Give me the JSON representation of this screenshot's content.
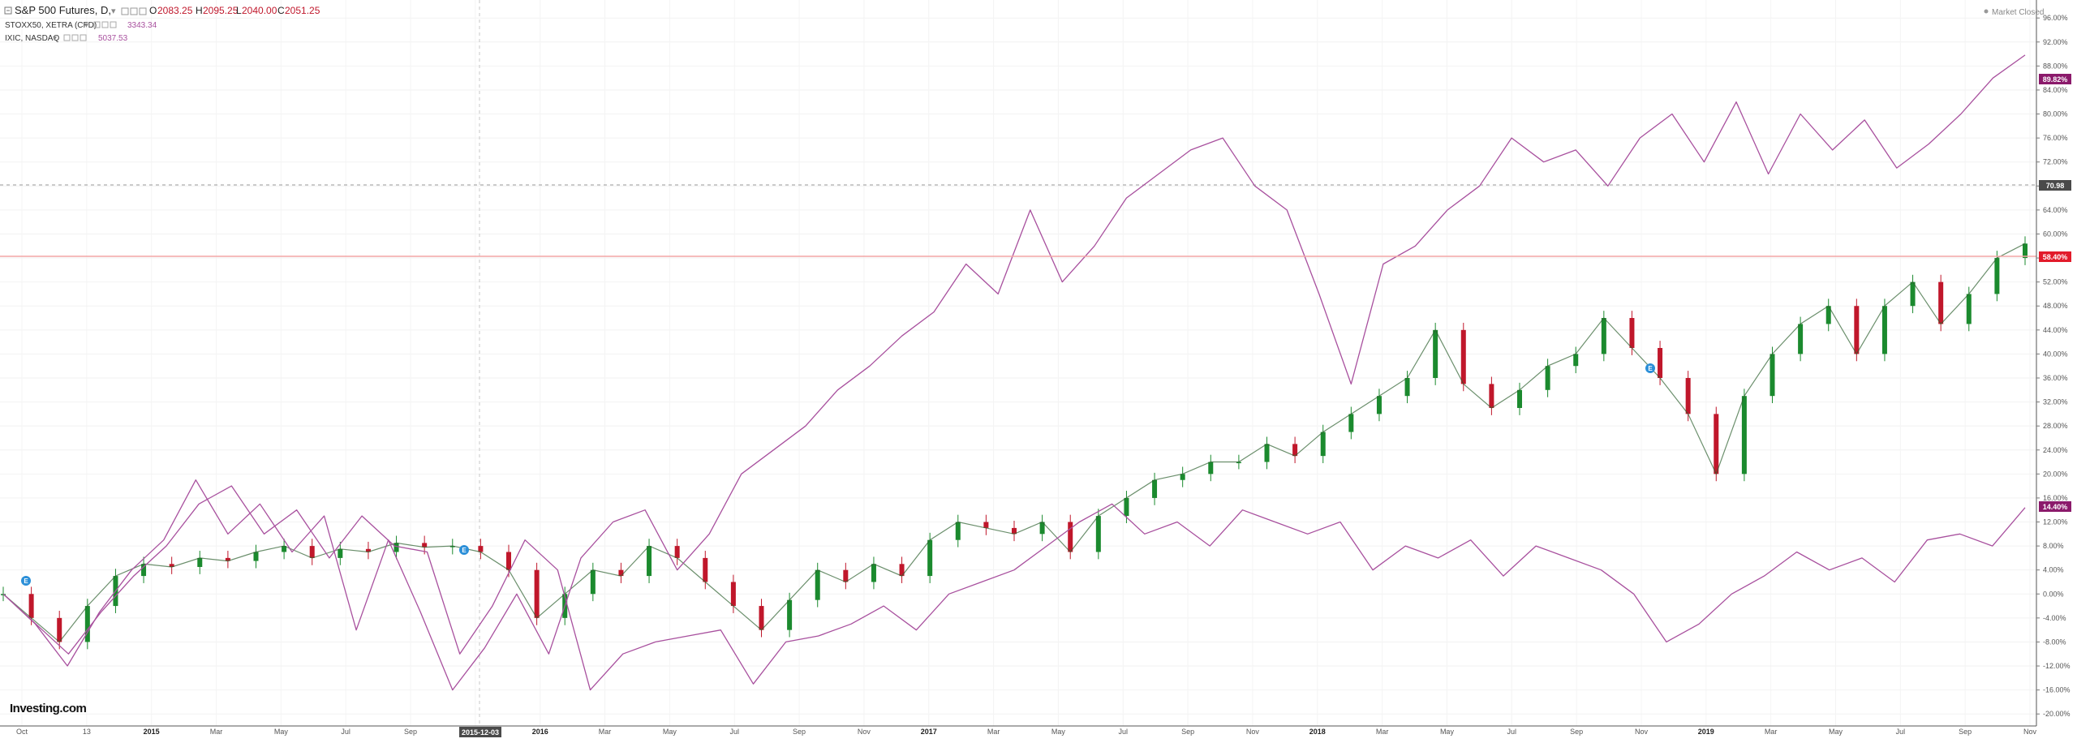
{
  "legend": {
    "main": {
      "name": "S&P 500 Futures, D,",
      "o_label": "O",
      "o": "2083.25",
      "h_label": "H",
      "h": "2095.25",
      "l_label": "L",
      "l": "2040.00",
      "c_label": "C",
      "c": "2051.25"
    },
    "compare": [
      {
        "name": "STOXX50, XETRA (CFD)",
        "value": "3343.34"
      },
      {
        "name": "IXIC, NASDAQ",
        "value": "5037.53"
      }
    ]
  },
  "market_status": "Market Closed",
  "crosshair_date": "2015-12-03",
  "logo": "Investing.com",
  "colors": {
    "up": "#1b8a2e",
    "down": "#c0172b",
    "compare_line": "#a8509e",
    "badge_purple": "#8b1a6b",
    "price_line": "#f3a6a6",
    "badge_red": "#e21b2b",
    "badge_dark": "#4a4a4a"
  },
  "badges": {
    "nasdaq": "89.82%",
    "crosshair": "70.98",
    "spx": "58.40%",
    "stoxx": "14.40%"
  },
  "chart_data": {
    "type": "line",
    "x_ticks": [
      "Oct",
      "13",
      "2015",
      "Mar",
      "May",
      "Jul",
      "Sep",
      "Nov",
      "2016",
      "Mar",
      "May",
      "Jul",
      "Sep",
      "Nov",
      "2017",
      "Mar",
      "May",
      "Jul",
      "Sep",
      "Nov",
      "2018",
      "Mar",
      "May",
      "Jul",
      "Sep",
      "Nov",
      "2019",
      "Mar",
      "May",
      "Jul",
      "Sep",
      "Nov"
    ],
    "y_ticks": [
      "96.00%",
      "92.00%",
      "88.00%",
      "84.00%",
      "80.00%",
      "76.00%",
      "72.00%",
      "68.00%",
      "64.00%",
      "60.00%",
      "56.00%",
      "52.00%",
      "48.00%",
      "44.00%",
      "40.00%",
      "36.00%",
      "32.00%",
      "28.00%",
      "24.00%",
      "20.00%",
      "16.00%",
      "12.00%",
      "8.00%",
      "4.00%",
      "0.00%",
      "-4.00%",
      "-8.00%",
      "-12.00%",
      "-16.00%",
      "-20.00%"
    ],
    "ylim": [
      -22,
      99
    ],
    "xlim": [
      0,
      62
    ],
    "series": [
      {
        "kind": "candles",
        "values": [
          0.0,
          -4.0,
          -8.0,
          -2.0,
          3.0,
          5.0,
          4.5,
          6.0,
          5.5,
          7.0,
          8.0,
          6.0,
          7.5,
          7.0,
          8.5,
          7.8,
          8.0,
          7.0,
          4.0,
          -4.0,
          0.0,
          4.0,
          3.0,
          8.0,
          6.0,
          2.0,
          -2.0,
          -6.0,
          -1.0,
          4.0,
          2.0,
          5.0,
          3.0,
          9.0,
          12.0,
          11.0,
          10.0,
          12.0,
          7.0,
          13.0,
          16.0,
          19.0,
          20.0,
          22.0,
          22.0,
          25.0,
          23.0,
          27.0,
          30.0,
          33.0,
          36.0,
          44.0,
          35.0,
          31.0,
          34.0,
          38.0,
          40.0,
          46.0,
          41.0,
          36.0,
          30.0,
          20.0,
          33.0,
          40.0,
          45.0,
          48.0,
          40.0,
          48.0,
          52.0,
          45.0,
          50.0,
          56.0,
          58.4
        ]
      },
      {
        "kind": "line",
        "values": [
          0.0,
          -5.0,
          -10.0,
          -3.0,
          3.0,
          8.0,
          15.0,
          18.0,
          10.0,
          14.0,
          6.0,
          13.0,
          8.0,
          7.0,
          -10.0,
          -2.0,
          9.0,
          4.0,
          -16.0,
          -10.0,
          -8.0,
          -7.0,
          -6.0,
          -15.0,
          -8.0,
          -7.0,
          -5.0,
          -2.0,
          -6.0,
          0.0,
          2.0,
          4.0,
          8.0,
          12.0,
          15.0,
          10.0,
          12.0,
          8.0,
          14.0,
          12.0,
          10.0,
          12.0,
          4.0,
          8.0,
          6.0,
          9.0,
          3.0,
          8.0,
          6.0,
          4.0,
          0.0,
          -8.0,
          -5.0,
          0.0,
          3.0,
          7.0,
          4.0,
          6.0,
          2.0,
          9.0,
          10.0,
          8.0,
          14.4
        ]
      },
      {
        "kind": "line",
        "values": [
          0.0,
          -5.0,
          -12.0,
          -3.0,
          4.0,
          9.0,
          19.0,
          10.0,
          15.0,
          7.0,
          13.0,
          -6.0,
          9.0,
          -3.0,
          -16.0,
          -9.0,
          0.0,
          -10.0,
          6.0,
          12.0,
          14.0,
          4.0,
          10.0,
          20.0,
          24.0,
          28.0,
          34.0,
          38.0,
          43.0,
          47.0,
          55.0,
          50.0,
          64.0,
          52.0,
          58.0,
          66.0,
          70.0,
          74.0,
          76.0,
          68.0,
          64.0,
          50.0,
          35.0,
          55.0,
          58.0,
          64.0,
          68.0,
          76.0,
          72.0,
          74.0,
          68.0,
          76.0,
          80.0,
          72.0,
          82.0,
          70.0,
          80.0,
          74.0,
          79.0,
          71.0,
          75.0,
          80.0,
          86.0,
          89.82
        ]
      }
    ]
  }
}
